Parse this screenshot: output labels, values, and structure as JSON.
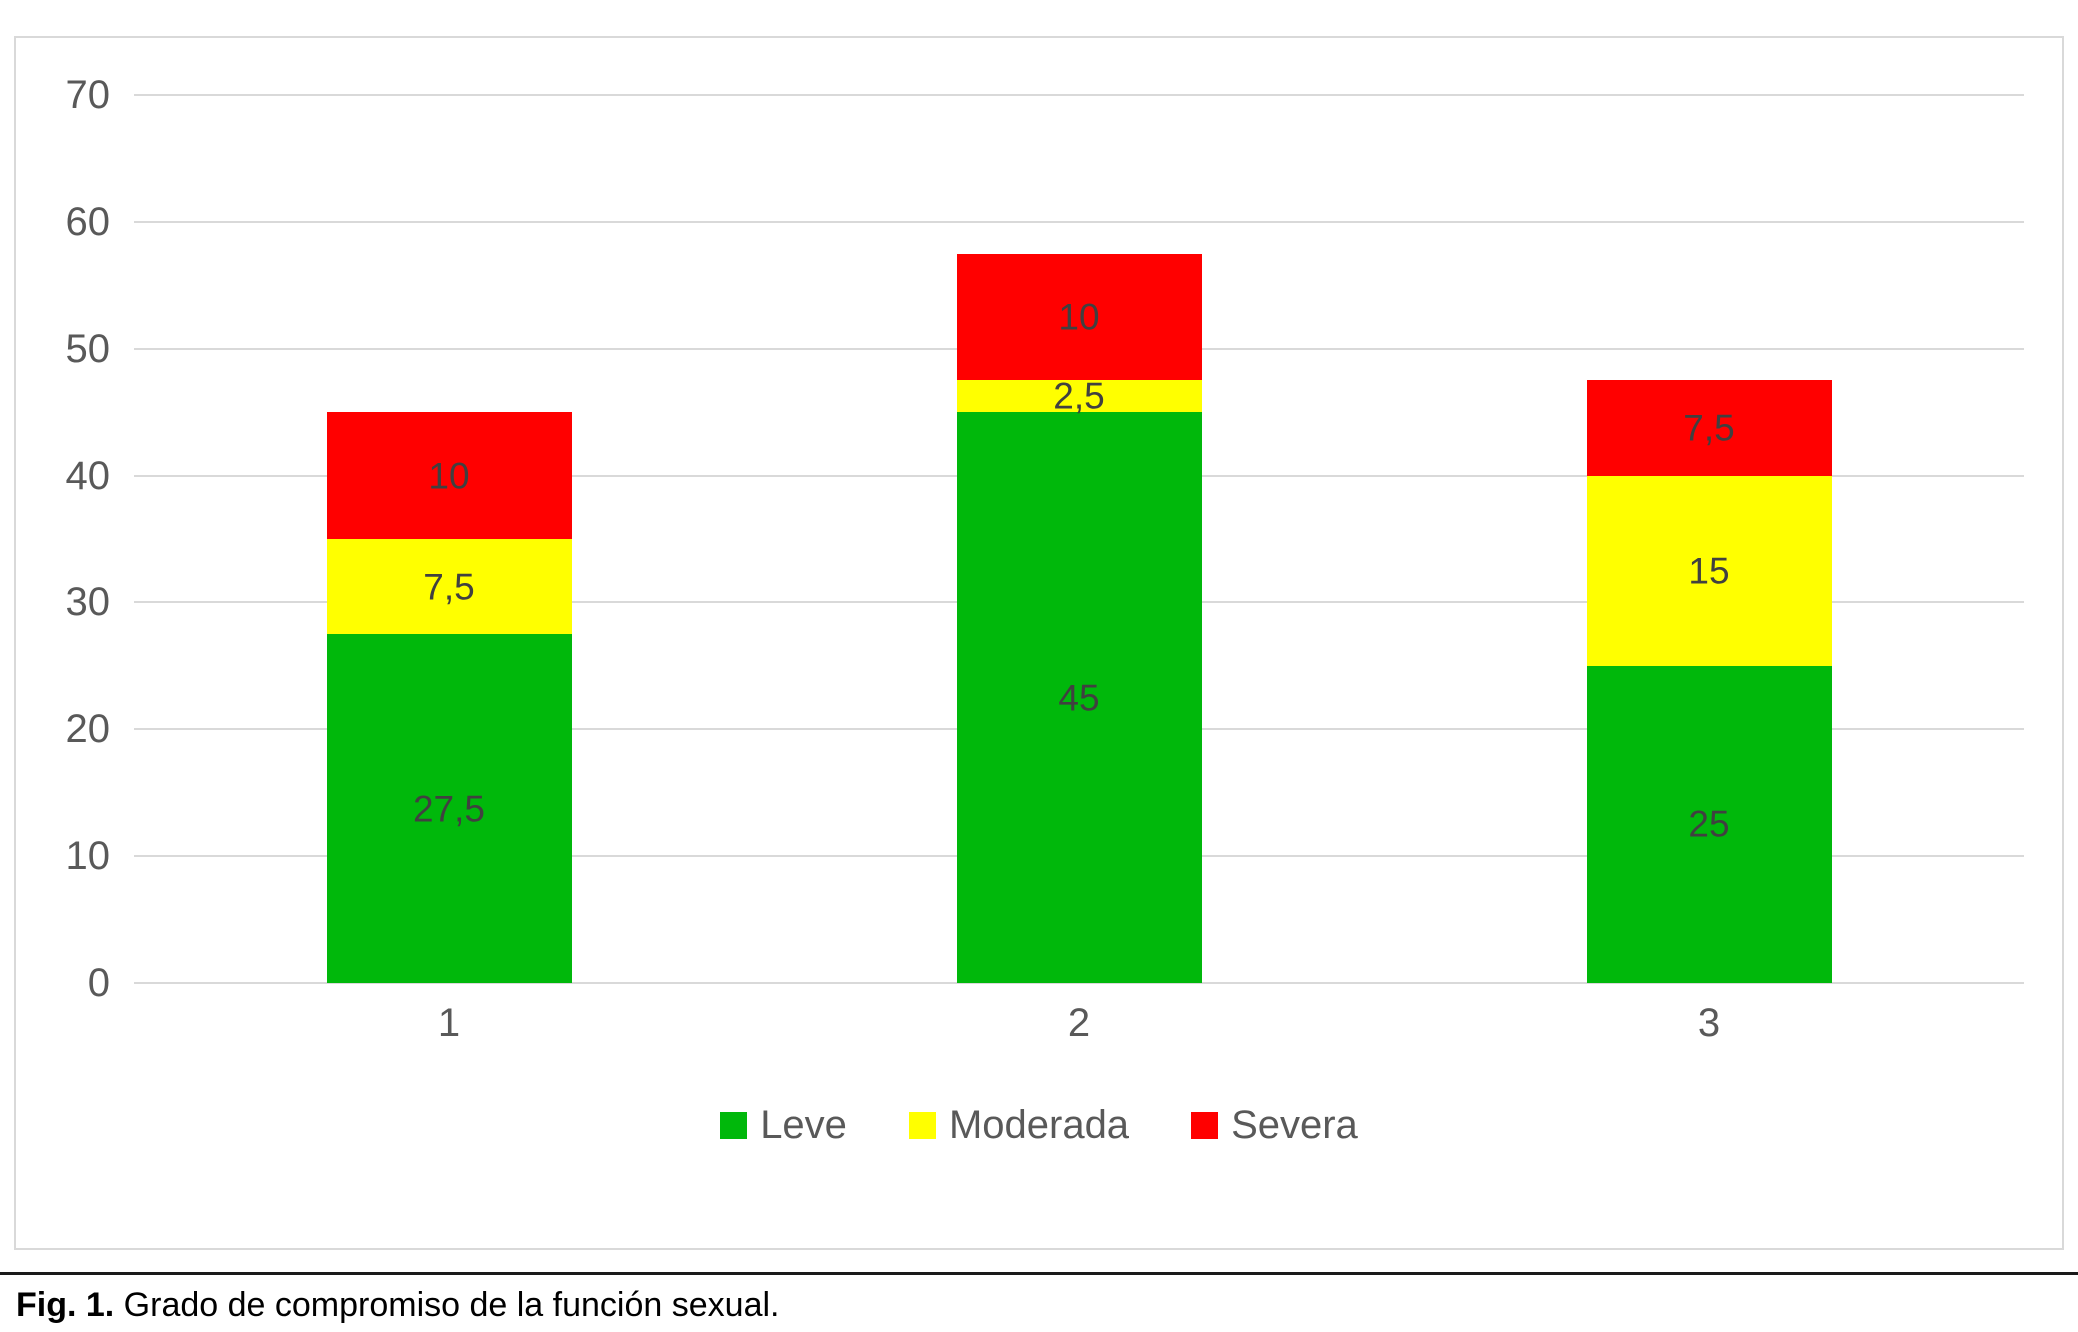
{
  "figure": {
    "caption_prefix": "Fig. 1.",
    "caption_text": " Grado de compromiso de la función sexual."
  },
  "chart_data": {
    "type": "bar",
    "stacked": true,
    "title": "",
    "xlabel": "",
    "ylabel": "",
    "categories": [
      "1",
      "2",
      "3"
    ],
    "series": [
      {
        "name": "Leve",
        "color": "#00b80b",
        "values": [
          27.5,
          45,
          25
        ],
        "labels": [
          "27,5",
          "45",
          "25"
        ]
      },
      {
        "name": "Moderada",
        "color": "#ffff00",
        "values": [
          7.5,
          2.5,
          15
        ],
        "labels": [
          "7,5",
          "2,5",
          "15"
        ]
      },
      {
        "name": "Severa",
        "color": "#ff0000",
        "values": [
          10,
          10,
          7.5
        ],
        "labels": [
          "10",
          "10",
          "7,5"
        ]
      }
    ],
    "totals": [
      45,
      57.5,
      47.5
    ],
    "ylim": [
      0,
      70
    ],
    "yticks": [
      0,
      10,
      20,
      30,
      40,
      50,
      60,
      70
    ],
    "ytick_labels": [
      "0",
      "10",
      "20",
      "30",
      "40",
      "50",
      "60",
      "70"
    ],
    "grid": true,
    "legend_position": "bottom",
    "colors": {
      "gridline": "#d9d9d9",
      "axis_text": "#595959",
      "data_label_text": "#404040",
      "frame_border": "#d9d9d9"
    }
  }
}
